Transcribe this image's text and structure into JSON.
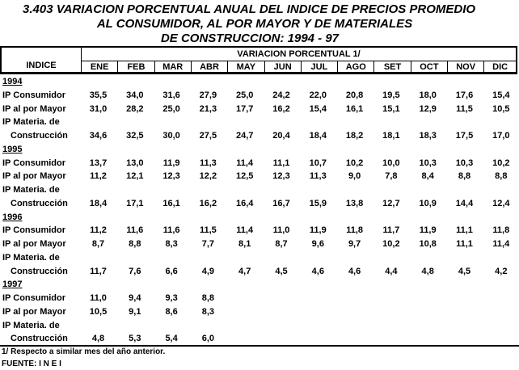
{
  "title": {
    "line1": "3.403 VARIACION PORCENTUAL ANUAL DEL INDICE DE PRECIOS PROMEDIO",
    "line2": "AL CONSUMIDOR, AL POR MAYOR Y DE  MATERIALES",
    "line3": "DE CONSTRUCCION: 1994 - 97"
  },
  "header": {
    "indice": "INDICE",
    "group": "VARIACION PORCENTUAL  1/",
    "months": [
      "ENE",
      "FEB",
      "MAR",
      "ABR",
      "MAY",
      "JUN",
      "JUL",
      "AGO",
      "SET",
      "OCT",
      "NOV",
      "DIC"
    ]
  },
  "years": [
    {
      "year": "1994",
      "rows": [
        {
          "label": "IP Consumidor",
          "values": [
            "35,5",
            "34,0",
            "31,6",
            "27,9",
            "25,0",
            "24,2",
            "22,0",
            "20,8",
            "19,5",
            "18,0",
            "17,6",
            "15,4"
          ]
        },
        {
          "label": "IP al por Mayor",
          "values": [
            "31,0",
            "28,2",
            "25,0",
            "21,3",
            "17,7",
            "16,2",
            "15,4",
            "16,1",
            "15,1",
            "12,9",
            "11,5",
            "10,5"
          ]
        },
        {
          "label": "IP Materia. de",
          "label2": "Construcción",
          "values": [
            "34,6",
            "32,5",
            "30,0",
            "27,5",
            "24,7",
            "20,4",
            "18,4",
            "18,2",
            "18,1",
            "18,3",
            "17,5",
            "17,0"
          ]
        }
      ]
    },
    {
      "year": "1995",
      "rows": [
        {
          "label": "IP Consumidor",
          "values": [
            "13,7",
            "13,0",
            "11,9",
            "11,3",
            "11,4",
            "11,1",
            "10,7",
            "10,2",
            "10,0",
            "10,3",
            "10,3",
            "10,2"
          ]
        },
        {
          "label": "IP al por Mayor",
          "values": [
            "11,2",
            "12,1",
            "12,3",
            "12,2",
            "12,5",
            "12,3",
            "11,3",
            "9,0",
            "7,8",
            "8,4",
            "8,8",
            "8,8"
          ]
        },
        {
          "label": "IP Materia. de",
          "label2": "Construcción",
          "values": [
            "18,4",
            "17,1",
            "16,1",
            "16,2",
            "16,4",
            "16,7",
            "15,9",
            "13,8",
            "12,7",
            "10,9",
            "14,4",
            "12,4"
          ]
        }
      ]
    },
    {
      "year": "1996",
      "rows": [
        {
          "label": "IP Consumidor",
          "values": [
            "11,2",
            "11,6",
            "11,6",
            "11,5",
            "11,4",
            "11,0",
            "11,9",
            "11,8",
            "11,7",
            "11,9",
            "11,1",
            "11,8"
          ]
        },
        {
          "label": "IP al por Mayor",
          "values": [
            "8,7",
            "8,8",
            "8,3",
            "7,7",
            "8,1",
            "8,7",
            "9,6",
            "9,7",
            "10,2",
            "10,8",
            "11,1",
            "11,4"
          ]
        },
        {
          "label": "IP Materia. de",
          "label2": "Construcción",
          "values": [
            "11,7",
            "7,6",
            "6,6",
            "4,9",
            "4,7",
            "4,5",
            "4,6",
            "4,6",
            "4,4",
            "4,8",
            "4,5",
            "4,2"
          ]
        }
      ]
    },
    {
      "year": "1997",
      "rows": [
        {
          "label": "IP Consumidor",
          "values": [
            "11,0",
            "9,4",
            "9,3",
            "8,8"
          ]
        },
        {
          "label": "IP al por Mayor",
          "values": [
            "10,5",
            "9,1",
            "8,6",
            "8,3"
          ]
        },
        {
          "label": "IP Materia. de",
          "label2": "Construcción",
          "values": [
            "4,8",
            "5,3",
            "5,4",
            "6,0"
          ]
        }
      ]
    }
  ],
  "footer": {
    "note": "1/ Respecto a similar mes del año anterior.",
    "source": "FUENTE: I N E I"
  }
}
